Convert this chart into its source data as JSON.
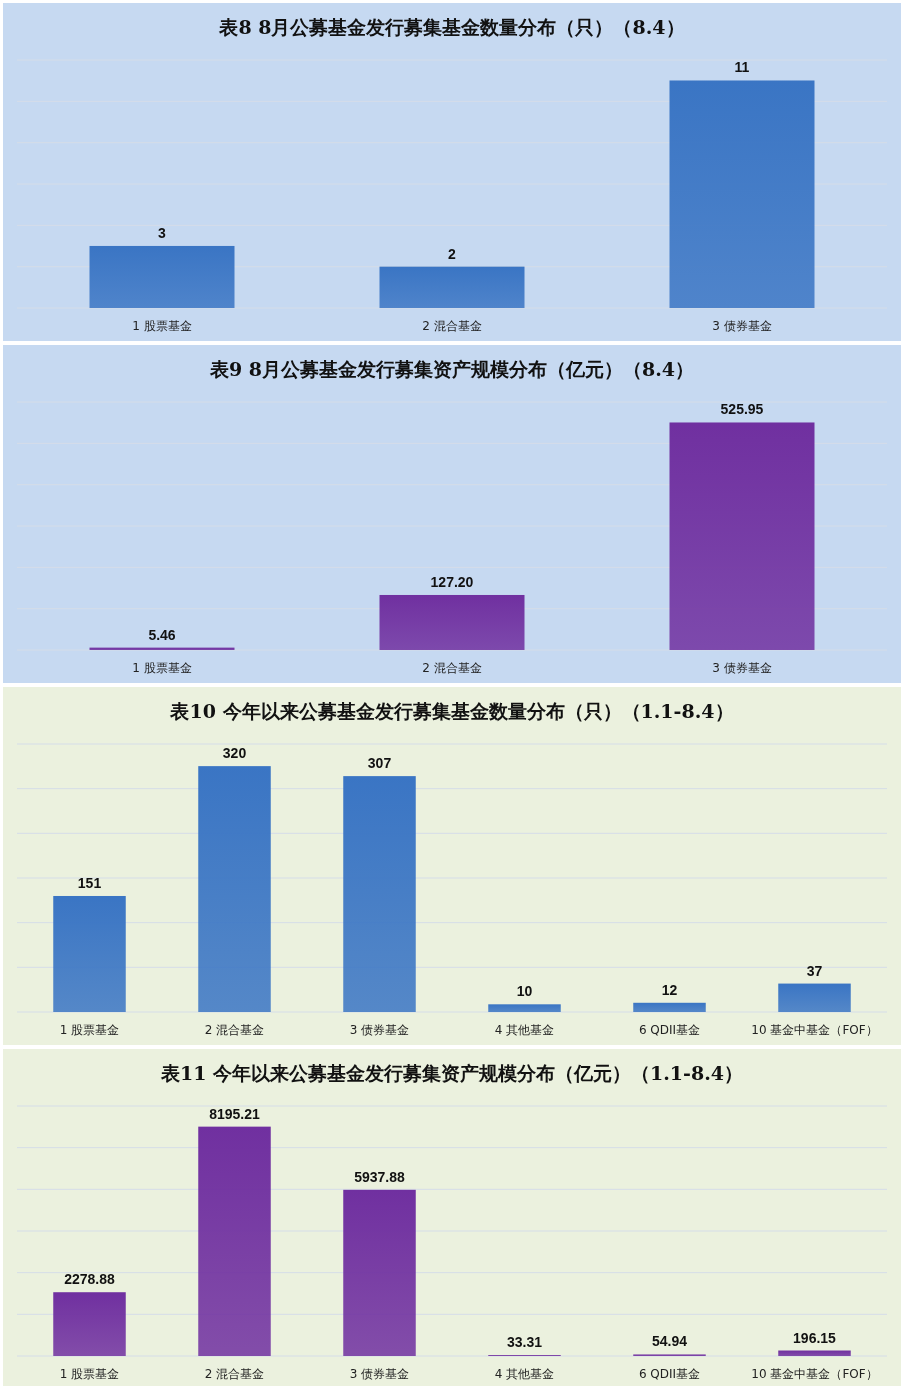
{
  "chart_data": [
    {
      "type": "bar",
      "title": "表8  8月公募基金发行募集基金数量分布（只）（8.4）",
      "categories": [
        "1 股票基金",
        "2 混合基金",
        "3 债券基金"
      ],
      "values": [
        3,
        2,
        11
      ],
      "color": "#3a75c4",
      "data_labels": true,
      "grid": true
    },
    {
      "type": "bar",
      "title": "表9  8月公募基金发行募集资产规模分布（亿元）（8.4）",
      "categories": [
        "1 股票基金",
        "2 混合基金",
        "3 债券基金"
      ],
      "values": [
        5.46,
        127.2,
        525.95
      ],
      "value_labels": [
        "5.46",
        "127.20",
        "525.95"
      ],
      "color": "#7030a0",
      "grid": true
    },
    {
      "type": "bar",
      "title": "表10  今年以来公募基金发行募集基金数量分布（只）（1.1-8.4）",
      "categories": [
        "1 股票基金",
        "2 混合基金",
        "3 债券基金",
        "4 其他基金",
        "6 QDII基金",
        "10 基金中基金（FOF）"
      ],
      "values": [
        151,
        320,
        307,
        10,
        12,
        37
      ],
      "color": "#3a75c4",
      "data_labels": true,
      "grid": true
    },
    {
      "type": "bar",
      "title": "表11  今年以来公募基金发行募集资产规模分布（亿元）（1.1-8.4）",
      "categories": [
        "1 股票基金",
        "2 混合基金",
        "3 债券基金",
        "4 其他基金",
        "6 QDII基金",
        "10 基金中基金（FOF）"
      ],
      "values": [
        2278.88,
        8195.21,
        5937.88,
        33.31,
        54.94,
        196.15
      ],
      "value_labels": [
        "2278.88",
        "8195.21",
        "5937.88",
        "33.31",
        "54.94",
        "196.15"
      ],
      "color": "#7030a0",
      "grid": true
    }
  ]
}
